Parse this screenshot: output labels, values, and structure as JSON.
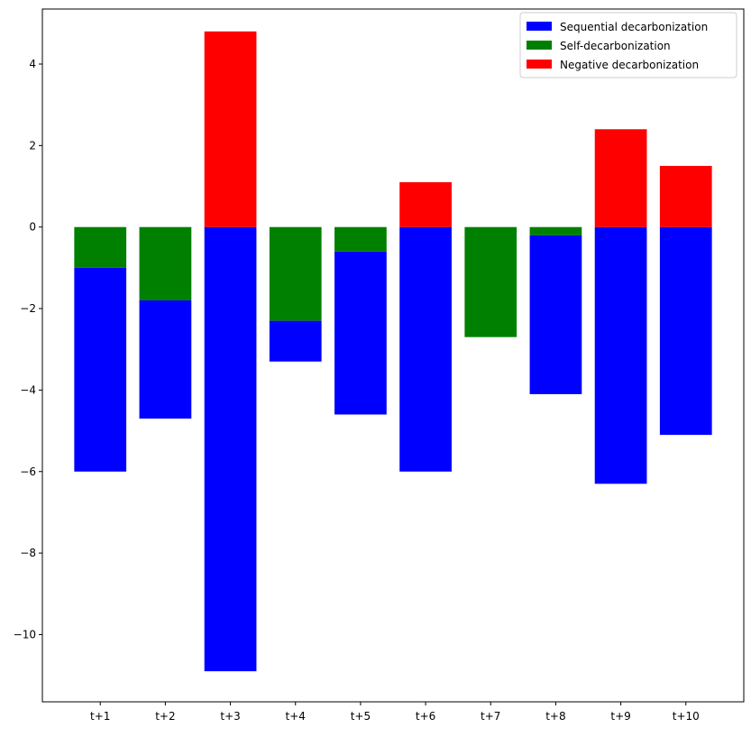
{
  "chart_data": {
    "type": "bar",
    "stacked": true,
    "categories": [
      "t+1",
      "t+2",
      "t+3",
      "t+4",
      "t+5",
      "t+6",
      "t+7",
      "t+8",
      "t+9",
      "t+10"
    ],
    "series": [
      {
        "name": "Sequential decarbonization",
        "color": "#0000ff",
        "segments": [
          [
            -6.0,
            -1.0
          ],
          [
            -4.7,
            -1.8
          ],
          [
            -10.9,
            0.0
          ],
          [
            -3.3,
            -2.3
          ],
          [
            -4.6,
            -0.6
          ],
          [
            -6.0,
            0.0
          ],
          [
            0.0,
            0.0
          ],
          [
            -4.1,
            -0.2
          ],
          [
            -6.3,
            0.0
          ],
          [
            -5.1,
            0.0
          ]
        ]
      },
      {
        "name": "Self-decarbonization",
        "color": "#008000",
        "segments": [
          [
            -1.0,
            0.0
          ],
          [
            -1.8,
            0.0
          ],
          [
            0.0,
            0.0
          ],
          [
            -2.3,
            0.0
          ],
          [
            -0.6,
            0.0
          ],
          [
            0.0,
            0.0
          ],
          [
            -2.7,
            0.0
          ],
          [
            -0.2,
            0.0
          ],
          [
            0.0,
            0.0
          ],
          [
            0.0,
            0.0
          ]
        ]
      },
      {
        "name": "Negative decarbonization",
        "color": "#ff0000",
        "segments": [
          [
            0.0,
            0.0
          ],
          [
            0.0,
            0.0
          ],
          [
            0.0,
            4.8
          ],
          [
            0.0,
            0.0
          ],
          [
            0.0,
            0.0
          ],
          [
            0.0,
            1.1
          ],
          [
            0.0,
            0.0
          ],
          [
            0.0,
            0.0
          ],
          [
            0.0,
            2.4
          ],
          [
            0.0,
            1.5
          ]
        ]
      }
    ],
    "ylim": [
      -11.65,
      5.35
    ],
    "yticks": [
      4,
      2,
      0,
      -2,
      -4,
      -6,
      -8,
      -10
    ],
    "ytick_labels": [
      "4",
      "2",
      "0",
      "−2",
      "−4",
      "−6",
      "−8",
      "−10"
    ],
    "xlim": [
      -0.89,
      9.89
    ],
    "bar_width": 0.8,
    "legend_position": "top-right",
    "grid": false,
    "title": "",
    "xlabel": "",
    "ylabel": ""
  }
}
